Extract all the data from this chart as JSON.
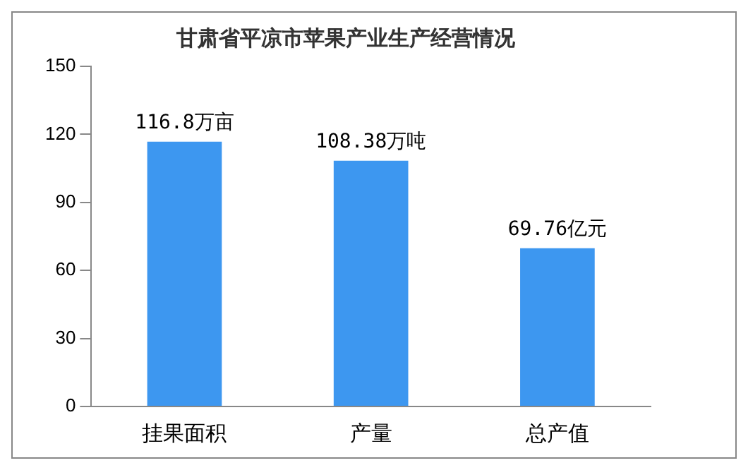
{
  "chart_data": {
    "type": "bar",
    "title": "甘肃省平凉市苹果产业生产经营情况",
    "categories": [
      "挂果面积",
      "产量",
      "总产值"
    ],
    "values": [
      116.8,
      108.38,
      69.76
    ],
    "value_labels": [
      "116.8万亩",
      "108.38万吨",
      "69.76亿元"
    ],
    "color": "#3d97f0",
    "ylim": [
      0,
      150
    ],
    "yticks": [
      0,
      30,
      60,
      90,
      120,
      150
    ],
    "grid": false,
    "legend": false
  }
}
